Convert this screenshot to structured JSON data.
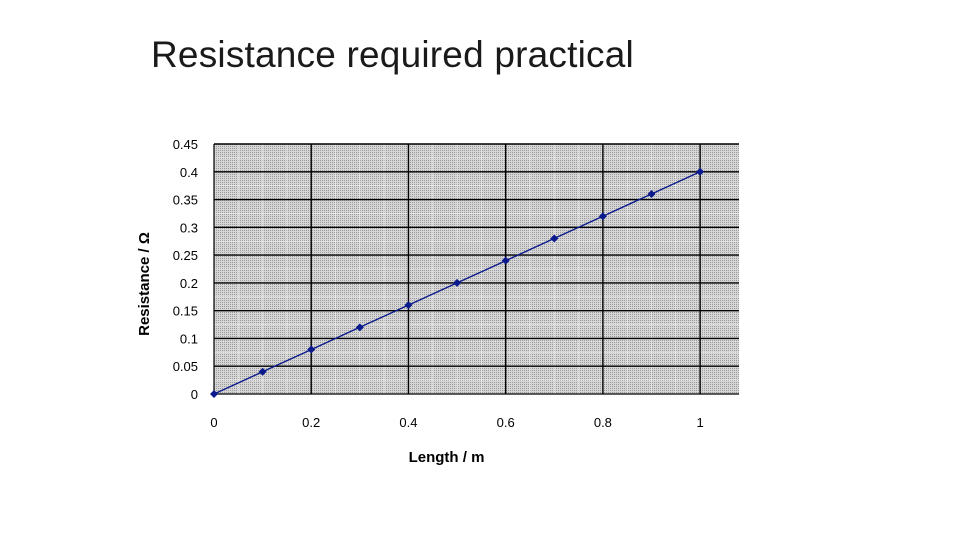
{
  "slide": {
    "title": "Resistance required practical"
  },
  "chart_data": {
    "type": "line",
    "xlabel": "Length  / m",
    "ylabel": "Resistance / Ω",
    "xlim": [
      0,
      1
    ],
    "ylim": [
      0,
      0.45
    ],
    "x_ticks": [
      "0",
      "0.2",
      "0.4",
      "0.6",
      "0.8",
      "1"
    ],
    "y_ticks": [
      "0",
      "0.05",
      "0.1",
      "0.15",
      "0.2",
      "0.25",
      "0.3",
      "0.35",
      "0.4",
      "0.45"
    ],
    "grid": true,
    "plot_background": "#c8c8c8",
    "series_color": "#0a1a8c",
    "marker": "diamond",
    "series": [
      {
        "x": [
          0,
          0.1,
          0.2,
          0.3,
          0.4,
          0.5,
          0.6,
          0.7,
          0.8,
          0.9,
          1.0
        ],
        "y": [
          0,
          0.04,
          0.08,
          0.12,
          0.16,
          0.2,
          0.24,
          0.28,
          0.32,
          0.36,
          0.4
        ]
      }
    ]
  }
}
